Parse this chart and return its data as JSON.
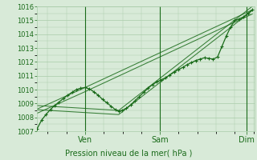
{
  "xlabel": "Pression niveau de la mer( hPa )",
  "ylim": [
    1007,
    1016
  ],
  "yticks": [
    1007,
    1008,
    1009,
    1010,
    1011,
    1012,
    1013,
    1014,
    1015,
    1016
  ],
  "bg_color": "#d8ead8",
  "grid_color": "#aaccaa",
  "line_color": "#1a6b1a",
  "main_line_x": [
    0.0,
    0.02,
    0.04,
    0.06,
    0.08,
    0.1,
    0.12,
    0.14,
    0.16,
    0.18,
    0.2,
    0.22,
    0.24,
    0.26,
    0.28,
    0.3,
    0.32,
    0.34,
    0.36,
    0.375,
    0.39,
    0.41,
    0.43,
    0.45,
    0.47,
    0.49,
    0.51,
    0.53,
    0.55,
    0.57,
    0.59,
    0.61,
    0.63,
    0.65,
    0.67,
    0.69,
    0.71,
    0.73,
    0.75,
    0.77,
    0.79,
    0.81,
    0.83,
    0.85,
    0.87,
    0.89,
    0.91,
    0.93,
    0.95,
    0.97,
    0.99
  ],
  "main_line_y": [
    1007.2,
    1007.8,
    1008.2,
    1008.55,
    1008.85,
    1009.1,
    1009.35,
    1009.6,
    1009.8,
    1010.0,
    1010.1,
    1010.15,
    1010.05,
    1009.85,
    1009.6,
    1009.3,
    1009.05,
    1008.8,
    1008.55,
    1008.45,
    1008.5,
    1008.65,
    1008.9,
    1009.2,
    1009.5,
    1009.8,
    1010.1,
    1010.35,
    1010.55,
    1010.7,
    1010.85,
    1011.05,
    1011.25,
    1011.45,
    1011.6,
    1011.8,
    1011.95,
    1012.1,
    1012.2,
    1012.3,
    1012.25,
    1012.2,
    1012.35,
    1013.1,
    1013.85,
    1014.5,
    1015.0,
    1015.1,
    1015.25,
    1015.5,
    1015.75
  ],
  "envelope_lines": [
    {
      "x": [
        0.0,
        0.22,
        0.99
      ],
      "y": [
        1008.6,
        1010.15,
        1015.75
      ]
    },
    {
      "x": [
        0.0,
        0.22,
        0.99
      ],
      "y": [
        1008.3,
        1009.85,
        1015.45
      ]
    },
    {
      "x": [
        0.0,
        0.375,
        0.99
      ],
      "y": [
        1008.85,
        1008.5,
        1016.0
      ]
    },
    {
      "x": [
        0.0,
        0.375,
        0.99
      ],
      "y": [
        1008.55,
        1008.2,
        1015.7
      ]
    }
  ],
  "vline_positions": [
    0.22,
    0.565,
    0.965
  ],
  "xtick_positions": [
    0.22,
    0.565,
    0.965
  ],
  "xtick_labels": [
    "Ven",
    "Sam",
    "Dim"
  ],
  "text_color": "#1a6b1a"
}
